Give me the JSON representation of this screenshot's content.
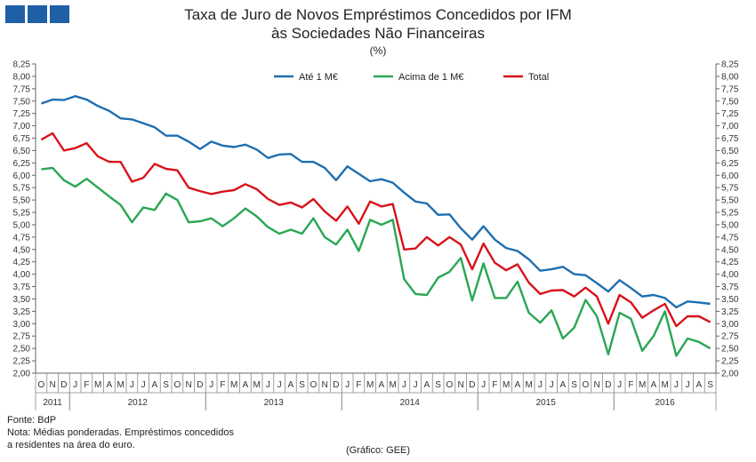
{
  "title_line1": "Taxa de Juro de Novos Empréstimos Concedidos por IFM",
  "title_line2": "às Sociedades Não Financeiras",
  "unit": "(%)",
  "source": "Fonte: BdP",
  "note_line1": "Nota: Médias ponderadas. Empréstimos concedidos",
  "note_line2": "a residentes na área do euro.",
  "credit": "(Gráfico: GEE)",
  "colors": {
    "series1": "#1f6eb0",
    "series2": "#2aa653",
    "series3": "#d8131b"
  },
  "chart_data": {
    "type": "line",
    "grid": false,
    "legend_position": "top-center",
    "ylim": [
      2.0,
      8.25
    ],
    "yticks": [
      "2,00",
      "2,25",
      "2,50",
      "2,75",
      "3,00",
      "3,25",
      "3,50",
      "3,75",
      "4,00",
      "4,25",
      "4,50",
      "4,75",
      "5,00",
      "5,25",
      "5,50",
      "5,75",
      "6,00",
      "6,25",
      "6,50",
      "6,75",
      "7,00",
      "7,25",
      "7,50",
      "7,75",
      "8,00",
      "8,25"
    ],
    "month_labels": [
      "O",
      "N",
      "D",
      "J",
      "F",
      "M",
      "A",
      "M",
      "J",
      "J",
      "A",
      "S",
      "O",
      "N",
      "D",
      "J",
      "F",
      "M",
      "A",
      "M",
      "J",
      "J",
      "A",
      "S",
      "O",
      "N",
      "D",
      "J",
      "F",
      "M",
      "A",
      "M",
      "J",
      "J",
      "A",
      "S",
      "O",
      "N",
      "D",
      "J",
      "F",
      "M",
      "A",
      "M",
      "J",
      "J",
      "A",
      "S",
      "O",
      "N",
      "D",
      "J",
      "F",
      "M",
      "A",
      "M",
      "J",
      "J",
      "A",
      "S"
    ],
    "years": [
      {
        "label": "2011",
        "start": 0,
        "end": 2
      },
      {
        "label": "2012",
        "start": 3,
        "end": 14
      },
      {
        "label": "2013",
        "start": 15,
        "end": 26
      },
      {
        "label": "2014",
        "start": 27,
        "end": 38
      },
      {
        "label": "2015",
        "start": 39,
        "end": 50
      },
      {
        "label": "2016",
        "start": 51,
        "end": 59
      }
    ],
    "series": [
      {
        "name": "Até 1 M€",
        "color": "#1f6eb0",
        "values": [
          7.45,
          7.53,
          7.52,
          7.6,
          7.53,
          7.4,
          7.3,
          7.15,
          7.13,
          7.05,
          6.97,
          6.8,
          6.8,
          6.68,
          6.53,
          6.68,
          6.6,
          6.57,
          6.62,
          6.52,
          6.35,
          6.42,
          6.43,
          6.27,
          6.27,
          6.15,
          5.9,
          6.18,
          6.03,
          5.88,
          5.92,
          5.85,
          5.65,
          5.47,
          5.43,
          5.2,
          5.21,
          4.93,
          4.7,
          4.97,
          4.7,
          4.53,
          4.47,
          4.3,
          4.07,
          4.1,
          4.15,
          4.0,
          3.98,
          3.82,
          3.65,
          3.88,
          3.72,
          3.55,
          3.58,
          3.52,
          3.33,
          3.45,
          3.43,
          3.4
        ]
      },
      {
        "name": "Acima de 1 M€",
        "color": "#2aa653",
        "values": [
          6.12,
          6.15,
          5.9,
          5.77,
          5.93,
          5.75,
          5.57,
          5.4,
          5.05,
          5.35,
          5.3,
          5.63,
          5.5,
          5.05,
          5.07,
          5.13,
          4.97,
          5.13,
          5.33,
          5.17,
          4.95,
          4.82,
          4.9,
          4.82,
          5.13,
          4.75,
          4.6,
          4.9,
          4.47,
          5.1,
          5.0,
          5.1,
          3.9,
          3.6,
          3.58,
          3.93,
          4.05,
          4.33,
          3.47,
          4.22,
          3.52,
          3.52,
          3.85,
          3.22,
          3.02,
          3.27,
          2.7,
          2.92,
          3.48,
          3.15,
          2.38,
          3.22,
          3.1,
          2.45,
          2.75,
          3.25,
          2.35,
          2.7,
          2.63,
          2.5
        ]
      },
      {
        "name": "Total",
        "color": "#d8131b",
        "values": [
          6.72,
          6.85,
          6.5,
          6.55,
          6.65,
          6.38,
          6.27,
          6.27,
          5.87,
          5.95,
          6.23,
          6.13,
          6.1,
          5.75,
          5.68,
          5.62,
          5.67,
          5.7,
          5.82,
          5.72,
          5.52,
          5.4,
          5.45,
          5.35,
          5.52,
          5.27,
          5.08,
          5.37,
          5.02,
          5.47,
          5.37,
          5.42,
          4.5,
          4.52,
          4.75,
          4.58,
          4.75,
          4.6,
          4.1,
          4.62,
          4.23,
          4.08,
          4.2,
          3.83,
          3.6,
          3.67,
          3.68,
          3.55,
          3.73,
          3.55,
          3.0,
          3.58,
          3.43,
          3.12,
          3.27,
          3.4,
          2.95,
          3.15,
          3.15,
          3.03
        ]
      }
    ]
  }
}
